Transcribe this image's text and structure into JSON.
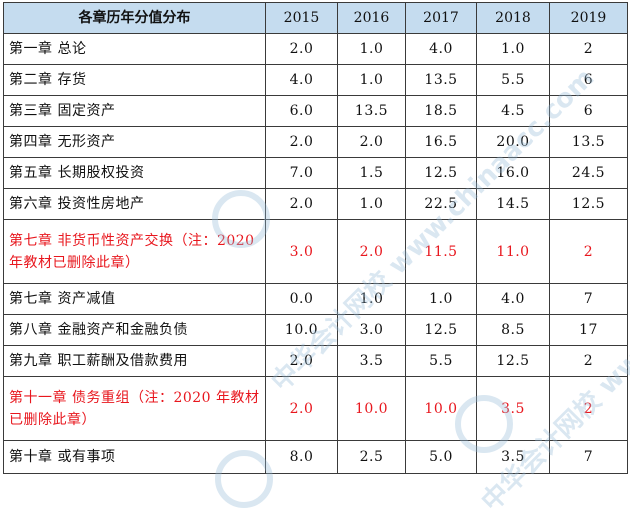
{
  "table": {
    "header": {
      "subject": "各章历年分值分布",
      "years": [
        "2015",
        "2016",
        "2017",
        "2018",
        "2019"
      ]
    },
    "rows": [
      {
        "chapter": "第一章  总论",
        "values": [
          "2.0",
          "1.0",
          "4.0",
          "1.0",
          "2"
        ],
        "highlight": false
      },
      {
        "chapter": "第二章  存货",
        "values": [
          "4.0",
          "1.0",
          "13.5",
          "5.5",
          "6"
        ],
        "highlight": false
      },
      {
        "chapter": "第三章  固定资产",
        "values": [
          "6.0",
          "13.5",
          "18.5",
          "4.5",
          "6"
        ],
        "highlight": false
      },
      {
        "chapter": "第四章  无形资产",
        "values": [
          "2.0",
          "2.0",
          "16.5",
          "20.0",
          "13.5"
        ],
        "highlight": false
      },
      {
        "chapter": "第五章  长期股权投资",
        "values": [
          "7.0",
          "1.5",
          "12.5",
          "16.0",
          "24.5"
        ],
        "highlight": false
      },
      {
        "chapter": "第六章  投资性房地产",
        "values": [
          "2.0",
          "1.0",
          "22.5",
          "14.5",
          "12.5"
        ],
        "highlight": false
      },
      {
        "chapter": "第七章  非货币性资产交换（注：2020 年教材已删除此章）",
        "values": [
          "3.0",
          "2.0",
          "11.5",
          "11.0",
          "2"
        ],
        "highlight": true
      },
      {
        "chapter": "第七章  资产减值",
        "values": [
          "0.0",
          "1.0",
          "1.0",
          "4.0",
          "7"
        ],
        "highlight": false
      },
      {
        "chapter": "第八章  金融资产和金融负债",
        "values": [
          "10.0",
          "3.0",
          "12.5",
          "8.5",
          "17"
        ],
        "highlight": false
      },
      {
        "chapter": "第九章  职工薪酬及借款费用",
        "values": [
          "2.0",
          "3.5",
          "5.5",
          "12.5",
          "2"
        ],
        "highlight": false
      },
      {
        "chapter": "第十一章  债务重组（注：2020 年教材已删除此章）",
        "values": [
          "2.0",
          "10.0",
          "10.0",
          "3.5",
          "2"
        ],
        "highlight": true
      },
      {
        "chapter": "第十章  或有事项",
        "values": [
          "8.0",
          "2.5",
          "5.0",
          "3.5",
          "7"
        ],
        "highlight": false
      }
    ]
  },
  "watermark": {
    "text": "中华会计网校 www.chinaacc.com"
  }
}
